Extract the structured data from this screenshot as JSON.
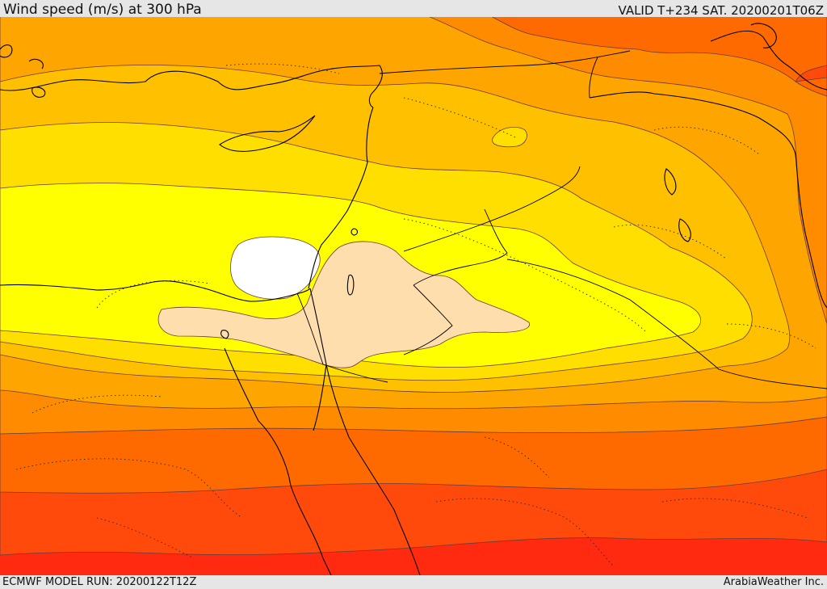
{
  "header": {
    "title": "Wind speed (m/s) at 300 hPa",
    "valid": "VALID T+234 SAT. 20200201T06Z"
  },
  "footer": {
    "model_run": "ECMWF MODEL RUN: 20200122T12Z",
    "credit": "ArabiaWeather Inc."
  },
  "map": {
    "palette": {
      "deep_red": "#ff2a10",
      "red_orange": "#ff4a0c",
      "orange_red": "#ff6a00",
      "orange": "#ff8c00",
      "light_orange": "#ffa500",
      "amber": "#ffc000",
      "gold": "#ffdf00",
      "yellow": "#ffff00",
      "peach": "#ffdead",
      "white": "#ffffff",
      "coast": "#000000",
      "contour": "#555555"
    }
  }
}
